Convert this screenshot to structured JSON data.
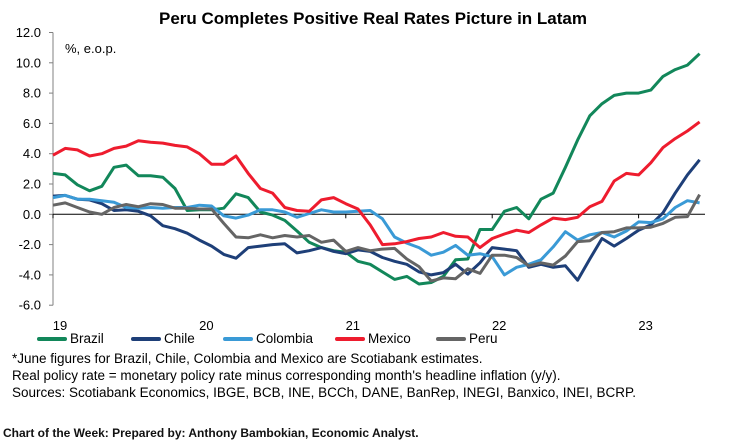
{
  "chart_data": {
    "type": "line",
    "title": "Peru Completes Positive Real Rates Picture in Latam",
    "ylabel": "%, e.o.p.",
    "xlabel": "",
    "ylim": [
      -6,
      12
    ],
    "yticks": [
      "12.0",
      "10.0",
      "8.0",
      "6.0",
      "4.0",
      "2.0",
      "0.0",
      "-2.0",
      "-4.0",
      "-6.0"
    ],
    "xticks": [
      "19",
      "20",
      "21",
      "22",
      "23"
    ],
    "grid": false,
    "legend": "bottom",
    "x": [
      "2019-01",
      "2019-02",
      "2019-03",
      "2019-04",
      "2019-05",
      "2019-06",
      "2019-07",
      "2019-08",
      "2019-09",
      "2019-10",
      "2019-11",
      "2019-12",
      "2020-01",
      "2020-02",
      "2020-03",
      "2020-04",
      "2020-05",
      "2020-06",
      "2020-07",
      "2020-08",
      "2020-09",
      "2020-10",
      "2020-11",
      "2020-12",
      "2021-01",
      "2021-02",
      "2021-03",
      "2021-04",
      "2021-05",
      "2021-06",
      "2021-07",
      "2021-08",
      "2021-09",
      "2021-10",
      "2021-11",
      "2021-12",
      "2022-01",
      "2022-02",
      "2022-03",
      "2022-04",
      "2022-05",
      "2022-06",
      "2022-07",
      "2022-08",
      "2022-09",
      "2022-10",
      "2022-11",
      "2022-12",
      "2023-01",
      "2023-02",
      "2023-03",
      "2023-04",
      "2023-05",
      "2023-06"
    ],
    "series": [
      {
        "name": "Brazil",
        "color": "#12875a",
        "values": [
          2.7,
          2.6,
          1.95,
          1.55,
          1.85,
          3.1,
          3.25,
          2.55,
          2.55,
          2.45,
          1.7,
          0.25,
          0.3,
          0.3,
          0.4,
          1.35,
          1.1,
          0.15,
          -0.05,
          -0.4,
          -1.1,
          -1.85,
          -2.2,
          -2.4,
          -2.5,
          -3.1,
          -3.3,
          -3.8,
          -4.3,
          -4.1,
          -4.6,
          -4.5,
          -4.1,
          -3.0,
          -2.95,
          -1.0,
          -1.0,
          0.2,
          0.45,
          -0.3,
          1.0,
          1.4,
          3.1,
          4.9,
          6.5,
          7.3,
          7.85,
          8.0,
          8.0,
          8.2,
          9.1,
          9.55,
          9.85,
          10.6
        ]
      },
      {
        "name": "Chile",
        "color": "#1e3f78",
        "values": [
          1.2,
          1.25,
          1.0,
          0.95,
          0.7,
          0.25,
          0.3,
          0.2,
          -0.1,
          -0.75,
          -0.95,
          -1.25,
          -1.7,
          -2.1,
          -2.65,
          -2.9,
          -2.2,
          -2.1,
          -2.0,
          -1.95,
          -2.55,
          -2.4,
          -2.2,
          -2.45,
          -2.6,
          -2.35,
          -2.45,
          -2.85,
          -3.1,
          -3.3,
          -3.8,
          -4.0,
          -3.85,
          -3.3,
          -3.95,
          -3.2,
          -2.2,
          -2.3,
          -2.4,
          -3.5,
          -3.3,
          -3.5,
          -3.4,
          -4.35,
          -2.95,
          -1.6,
          -2.1,
          -1.6,
          -1.05,
          -0.7,
          0.1,
          1.4,
          2.6,
          3.6
        ]
      },
      {
        "name": "Colombia",
        "color": "#3a9ad6",
        "values": [
          1.1,
          1.25,
          1.0,
          1.0,
          0.9,
          0.8,
          0.45,
          0.4,
          0.45,
          0.4,
          0.45,
          0.45,
          0.6,
          0.55,
          -0.1,
          -0.25,
          -0.05,
          0.3,
          0.3,
          0.15,
          -0.2,
          0.05,
          0.3,
          0.15,
          0.15,
          0.2,
          0.25,
          -0.3,
          -1.5,
          -1.9,
          -2.2,
          -2.7,
          -2.5,
          -2.05,
          -2.7,
          -2.6,
          -2.8,
          -4.0,
          -3.5,
          -3.3,
          -3.0,
          -2.15,
          -1.15,
          -1.7,
          -1.35,
          -1.2,
          -1.5,
          -1.1,
          -0.5,
          -0.55,
          -0.3,
          0.45,
          0.9,
          0.75
        ]
      },
      {
        "name": "Mexico",
        "color": "#ee1c2e",
        "values": [
          3.9,
          4.35,
          4.25,
          3.85,
          4.0,
          4.35,
          4.5,
          4.85,
          4.75,
          4.7,
          4.55,
          4.45,
          4.0,
          3.3,
          3.3,
          3.85,
          2.7,
          1.7,
          1.4,
          0.45,
          0.25,
          0.2,
          0.95,
          1.1,
          0.7,
          0.35,
          -0.7,
          -2.0,
          -1.95,
          -1.8,
          -1.6,
          -1.5,
          -1.2,
          -1.45,
          -1.5,
          -2.2,
          -1.6,
          -1.3,
          -1.05,
          -1.2,
          -0.7,
          -0.25,
          -0.35,
          -0.2,
          0.5,
          0.85,
          2.2,
          2.7,
          2.6,
          3.4,
          4.4,
          5.0,
          5.5,
          6.1
        ]
      },
      {
        "name": "Peru",
        "color": "#656565",
        "values": [
          0.6,
          0.75,
          0.45,
          0.15,
          0.0,
          0.45,
          0.65,
          0.5,
          0.7,
          0.65,
          0.4,
          0.4,
          0.35,
          0.35,
          -0.6,
          -1.5,
          -1.55,
          -1.35,
          -1.55,
          -1.4,
          -1.5,
          -1.4,
          -1.85,
          -1.7,
          -2.45,
          -2.2,
          -2.4,
          -2.3,
          -2.25,
          -2.95,
          -3.45,
          -4.4,
          -4.2,
          -4.25,
          -3.6,
          -3.9,
          -2.7,
          -2.7,
          -2.85,
          -3.4,
          -3.2,
          -3.35,
          -2.75,
          -1.8,
          -1.75,
          -1.2,
          -1.15,
          -0.9,
          -0.9,
          -0.85,
          -0.6,
          -0.2,
          -0.15,
          1.3
        ]
      }
    ]
  },
  "notes": [
    "*June figures for Brazil, Chile, Colombia and Mexico are Scotiabank estimates.",
    "Real policy rate = monetary policy rate minus corresponding month's headline inflation (y/y).",
    "Sources: Scotiabank Economics, IBGE, BCB, INE, BCCh, DANE, BanRep, INEGI, Banxico, INEI, BCRP."
  ],
  "footer": "Chart of the Week:  Prepared by: Anthony Bambokian, Economic Analyst."
}
